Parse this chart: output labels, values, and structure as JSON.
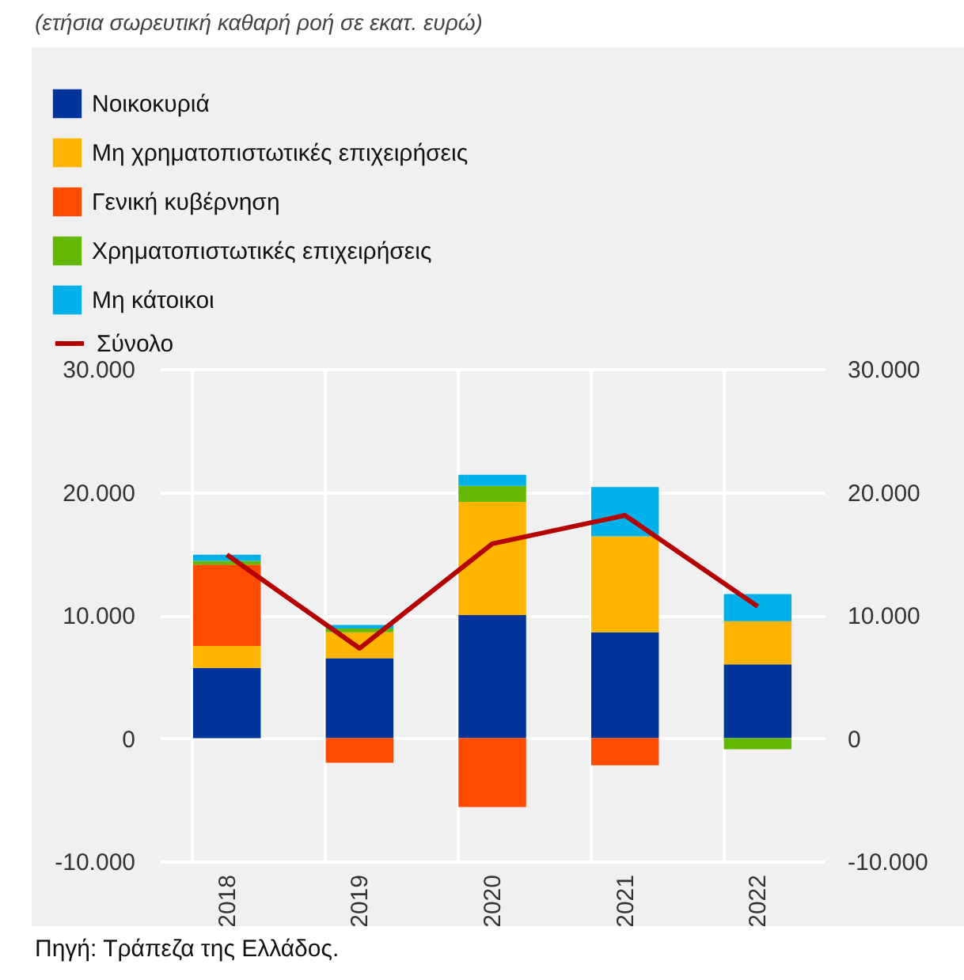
{
  "chart_data": {
    "type": "bar",
    "title": "(ετήσια σωρευτική καθαρή ροή σε εκατ. ευρώ)",
    "categories": [
      "2018",
      "2019",
      "2020",
      "2021",
      "2022"
    ],
    "stacked": true,
    "series": [
      {
        "name": "Νοικοκυριά",
        "color": "#00349a",
        "values": [
          5700,
          6500,
          10000,
          8600,
          6000
        ]
      },
      {
        "name": "Μη χρηματοπιστωτικές επιχειρήσεις",
        "color": "#ffb400",
        "values": [
          1800,
          2100,
          9200,
          7800,
          3500
        ]
      },
      {
        "name": "Γενική κυβέρνηση",
        "color": "#ff4b00",
        "values": [
          6600,
          -2000,
          -5600,
          -2200,
          null
        ]
      },
      {
        "name": "Χρηματοπιστωτικές επιχειρήσεις",
        "color": "#64b900",
        "values": [
          300,
          300,
          1300,
          null,
          -900
        ]
      },
      {
        "name": "Μη κάτοικοι",
        "color": "#00b0e8",
        "values": [
          500,
          300,
          900,
          4000,
          2200
        ]
      },
      {
        "name": "Σύνολο",
        "type": "line",
        "axis": "y2",
        "color": "#b40000",
        "line_style": "solid",
        "values": [
          14900,
          7300,
          15800,
          18100,
          10700
        ]
      }
    ],
    "ylim": [
      -10000,
      30000
    ],
    "yticks": [
      {
        "value": -10000,
        "label": "-10.000"
      },
      {
        "value": 0,
        "label": "0"
      },
      {
        "value": 10000,
        "label": "10.000"
      },
      {
        "value": 20000,
        "label": "20.000"
      },
      {
        "value": 30000,
        "label": "30.000"
      }
    ],
    "y2lim": [
      -10000,
      30000
    ],
    "y2ticks": [
      {
        "value": -10000,
        "label": "-10.000"
      },
      {
        "value": 0,
        "label": "0"
      },
      {
        "value": 10000,
        "label": "10.000"
      },
      {
        "value": 20000,
        "label": "20.000"
      },
      {
        "value": 30000,
        "label": "30.000"
      }
    ],
    "grid": true,
    "legend": "top",
    "annotations": [
      "Πηγή: Τράπεζα της Ελλάδος."
    ]
  }
}
